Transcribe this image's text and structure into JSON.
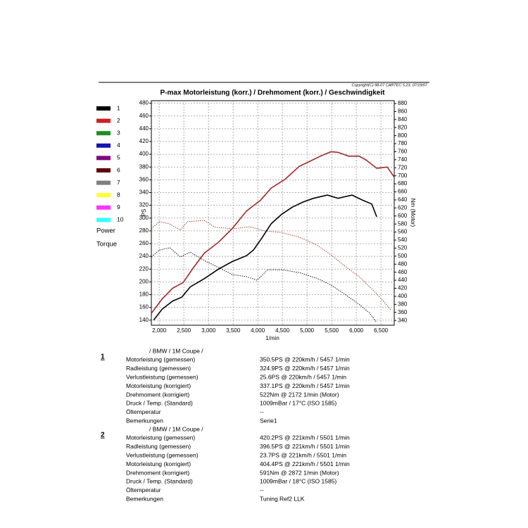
{
  "header": {
    "copyright": "Copyright(C) 98-07 CARTEC 5.23, 07/19/07"
  },
  "chart_data": {
    "type": "line",
    "title": "P-max Motorleistung (korr.) / Drehmoment (korr.) / Geschwindigkeit",
    "x_label": "1/min",
    "y_label": "PS",
    "y2_label": "Nm (Motor)",
    "grid": true,
    "xlim": [
      1840,
      6770
    ],
    "xticks": [
      {
        "value": 2000,
        "label": "2,000"
      },
      {
        "value": 2500,
        "label": "2,500"
      },
      {
        "value": 3000,
        "label": "3,000"
      },
      {
        "value": 3500,
        "label": "3,500"
      },
      {
        "value": 4000,
        "label": "4,000"
      },
      {
        "value": 4500,
        "label": "4,500"
      },
      {
        "value": 5000,
        "label": "5,000"
      },
      {
        "value": 5500,
        "label": "5,500"
      },
      {
        "value": 6000,
        "label": "6,000"
      },
      {
        "value": 6500,
        "label": "6,500"
      }
    ],
    "ylim": [
      132,
      484
    ],
    "yticks": [
      140,
      160,
      180,
      200,
      220,
      240,
      260,
      280,
      300,
      320,
      340,
      360,
      380,
      400,
      420,
      440,
      460,
      480
    ],
    "y2lim": [
      328,
      887
    ],
    "y2ticks": [
      340,
      360,
      380,
      400,
      420,
      440,
      460,
      480,
      500,
      520,
      540,
      560,
      580,
      600,
      620,
      640,
      660,
      680,
      700,
      720,
      740,
      760,
      780,
      800,
      820,
      840,
      860,
      880
    ],
    "legend": [
      {
        "label": "1",
        "color": "#000000"
      },
      {
        "label": "2",
        "color": "#cc2222"
      },
      {
        "label": "3",
        "color": "#228b22"
      },
      {
        "label": "4",
        "color": "#1414b4"
      },
      {
        "label": "5",
        "color": "#800080"
      },
      {
        "label": "6",
        "color": "#600000"
      },
      {
        "label": "7",
        "color": "#808080"
      },
      {
        "label": "8",
        "color": "#ffff33"
      },
      {
        "label": "9",
        "color": "#ff33ff"
      },
      {
        "label": "10",
        "color": "#33ffff"
      }
    ],
    "legend_kinds": [
      "Power",
      "Torque"
    ],
    "series": [
      {
        "color": "#a02828",
        "axis": "y",
        "line_style": "solid",
        "x": [
          1843,
          2057,
          2271,
          2486,
          2700,
          2914,
          3200,
          3486,
          3771,
          4057,
          4271,
          4557,
          4843,
          5057,
          5271,
          5486,
          5629,
          5843,
          6057,
          6200,
          6414,
          6629,
          6771
        ],
        "values": [
          151,
          173,
          190,
          199,
          223,
          245,
          262,
          284,
          311,
          328,
          347,
          361,
          381,
          389,
          397,
          404,
          403,
          397,
          397,
          391,
          378,
          380,
          364
        ]
      },
      {
        "color": "#000000",
        "axis": "y",
        "line_style": "solid",
        "x": [
          1886,
          2057,
          2271,
          2457,
          2629,
          2914,
          3200,
          3486,
          3771,
          3914,
          4086,
          4271,
          4486,
          4700,
          4914,
          5129,
          5414,
          5629,
          5914,
          6129,
          6314,
          6414
        ],
        "values": [
          140,
          157,
          170,
          176,
          192,
          205,
          220,
          232,
          241,
          250,
          269,
          291,
          306,
          317,
          325,
          331,
          336,
          331,
          336,
          328,
          322,
          302
        ]
      },
      {
        "color": "#a02828",
        "axis": "y2",
        "line_style": "dotted",
        "x": [
          1843,
          2000,
          2214,
          2429,
          2571,
          2914,
          3129,
          3486,
          3843,
          4129,
          4486,
          4843,
          5200,
          5486,
          5771,
          6057,
          6343,
          6557,
          6700
        ],
        "values": [
          568,
          586,
          580,
          565,
          586,
          589,
          572,
          568,
          573,
          563,
          559,
          547,
          528,
          503,
          475,
          449,
          415,
          387,
          366
        ]
      },
      {
        "color": "#000000",
        "axis": "y2",
        "line_style": "dotted",
        "x": [
          1843,
          2000,
          2214,
          2429,
          2629,
          2914,
          3200,
          3486,
          3771,
          3986,
          4200,
          4486,
          4843,
          5200,
          5486,
          5771,
          6057,
          6271,
          6414
        ],
        "values": [
          498,
          515,
          521,
          498,
          510,
          489,
          472,
          454,
          449,
          440,
          466,
          466,
          459,
          445,
          428,
          405,
          380,
          358,
          335
        ]
      }
    ]
  },
  "runs": [
    {
      "index": "1",
      "heading": "/ BMW / 1M Coupe /",
      "rows": [
        [
          "Motorleistung (gemessen)",
          "350.5PS @ 220km/h / 5457 1/min"
        ],
        [
          "Radleistung (gemessen)",
          "324.9PS @ 220km/h / 5457 1/min"
        ],
        [
          "Verlustleistung (gemessen)",
          "25.6PS @ 220km/h / 5457 1/min"
        ],
        [
          "Motorleistung (korrigiert)",
          "337.1PS @ 220km/h / 5457 1/min"
        ],
        [
          "Drehmoment (korrigiert)",
          "522Nm @ 2172 1/min (Motor)"
        ],
        [
          "Druck / Temp. (Standard)",
          "1009mBar / 17°C   (ISO 1585)"
        ],
        [
          "Öltemperatur",
          "--"
        ],
        [
          "Bemerkungen",
          "Serie1"
        ]
      ]
    },
    {
      "index": "2",
      "heading": "/ BMW / 1M Coupe /",
      "rows": [
        [
          "Motorleistung (gemessen)",
          "420.2PS @ 221km/h / 5501 1/min"
        ],
        [
          "Radleistung (gemessen)",
          "396.5PS @ 221km/h / 5501 1/min"
        ],
        [
          "Verlustleistung (gemessen)",
          "23.7PS @ 221km/h / 5501 1/min"
        ],
        [
          "Motorleistung (korrigiert)",
          "404.4PS @ 221km/h / 5501 1/min"
        ],
        [
          "Drehmoment (korrigiert)",
          "591Nm @ 2872 1/min (Motor)"
        ],
        [
          "Druck / Temp. (Standard)",
          "1009mBar / 18°C   (ISO 1585)"
        ],
        [
          "Öltemperatur",
          "--"
        ],
        [
          "Bemerkungen",
          "Tuning Ref2 LLK"
        ]
      ]
    }
  ]
}
